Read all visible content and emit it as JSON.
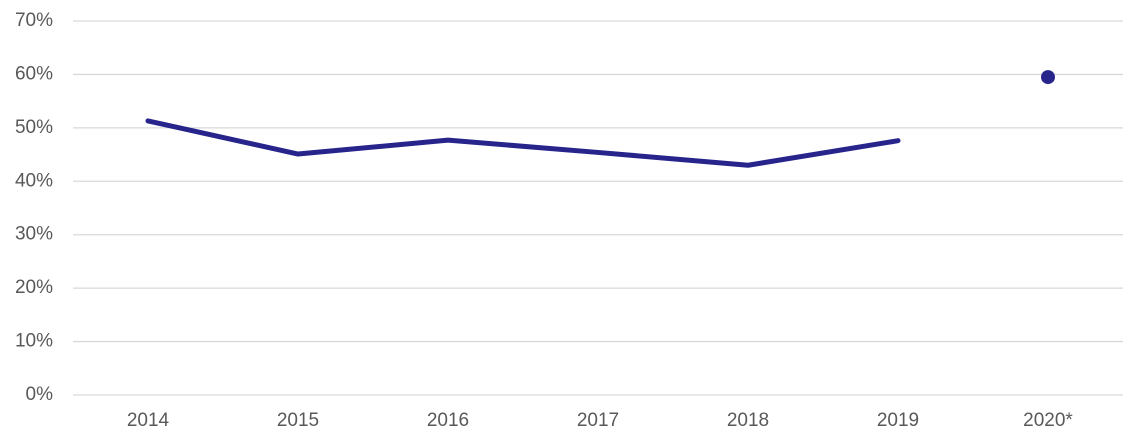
{
  "chart_data": {
    "type": "line",
    "categories": [
      "2014",
      "2015",
      "2016",
      "2017",
      "2018",
      "2019",
      "2020*"
    ],
    "series": [
      {
        "color": "#27258c",
        "values": [
          51.3,
          45.1,
          47.7,
          45.4,
          43.0,
          47.6,
          null
        ]
      },
      {
        "color": "#27258c",
        "marker": "dot",
        "values": [
          null,
          null,
          null,
          null,
          null,
          null,
          59.5
        ]
      }
    ],
    "ylim": [
      0,
      70
    ],
    "yticks": [
      {
        "value": 0,
        "label": "0%"
      },
      {
        "value": 10,
        "label": "10%"
      },
      {
        "value": 20,
        "label": "20%"
      },
      {
        "value": 30,
        "label": "30%"
      },
      {
        "value": 40,
        "label": "40%"
      },
      {
        "value": 50,
        "label": "50%"
      },
      {
        "value": 60,
        "label": "60%"
      },
      {
        "value": 70,
        "label": "70%"
      }
    ],
    "grid": true
  }
}
